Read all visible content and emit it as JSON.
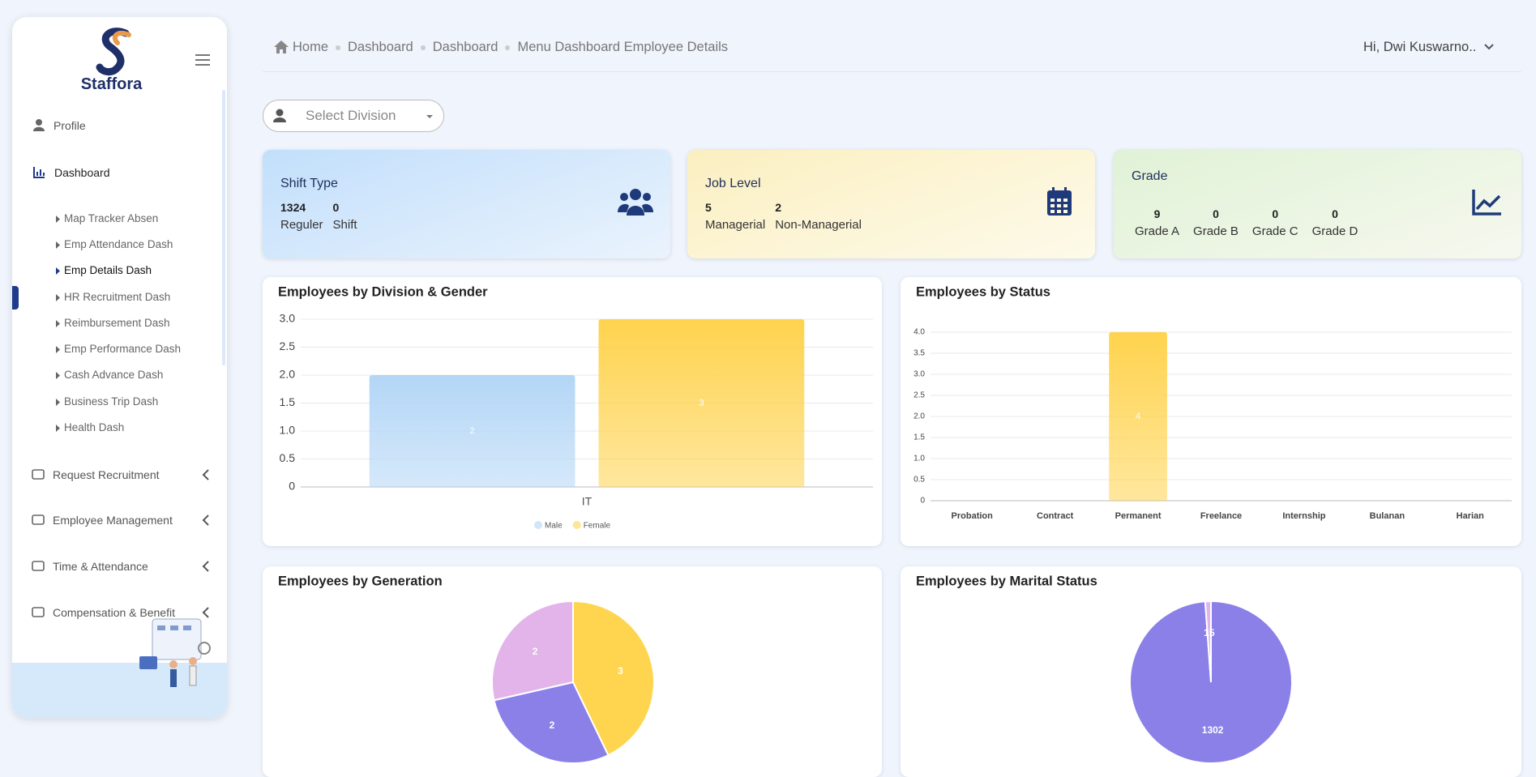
{
  "sidebar": {
    "brand": "Staffora",
    "profile": "Profile",
    "dashboard": "Dashboard",
    "dashboard_items": [
      "Map Tracker Absen",
      "Emp Attendance Dash",
      "Emp Details Dash",
      "HR Recruitment Dash",
      "Reimbursement Dash",
      "Emp Performance Dash",
      "Cash Advance Dash",
      "Business Trip Dash",
      "Health Dash"
    ],
    "groups": [
      "Request Recruitment",
      "Employee Management",
      "Time & Attendance",
      "Compensation & Benefit"
    ]
  },
  "header": {
    "breadcrumb": [
      "Home",
      "Dashboard",
      "Dashboard",
      "Menu Dashboard Employee Details"
    ],
    "user": "Hi, Dwi Kuswarno.."
  },
  "filter": {
    "placeholder": "Select Division"
  },
  "cards": [
    {
      "title": "Shift Type",
      "items": [
        {
          "value": 1324,
          "label": "Reguler"
        },
        {
          "value": 0,
          "label": "Shift"
        }
      ]
    },
    {
      "title": "Job Level",
      "items": [
        {
          "value": 5,
          "label": "Managerial"
        },
        {
          "value": 2,
          "label": "Non-Managerial"
        }
      ]
    },
    {
      "title": "Grade",
      "items": [
        {
          "value": 9,
          "label": "Grade A"
        },
        {
          "value": 0,
          "label": "Grade B"
        },
        {
          "value": 0,
          "label": "Grade C"
        },
        {
          "value": 0,
          "label": "Grade D"
        }
      ]
    }
  ],
  "chart_data": [
    {
      "type": "bar",
      "title": "Employees by Division & Gender",
      "categories": [
        "IT"
      ],
      "series": [
        {
          "name": "Male",
          "color": "#b3d6f6",
          "values": [
            2
          ]
        },
        {
          "name": "Female",
          "color": "#ffd34e",
          "values": [
            3
          ]
        }
      ],
      "ylim": [
        0,
        3
      ],
      "yticks": [
        0,
        0.5,
        {
          "value": 1,
          "label": "1.0"
        },
        1.5,
        {
          "value": 2,
          "label": "2.0"
        },
        2.5,
        {
          "value": 3,
          "label": "3.0"
        }
      ],
      "grid": true,
      "legend": "bottom"
    },
    {
      "type": "bar",
      "title": "Employees by Status",
      "categories": [
        "Probation",
        "Contract",
        "Permanent",
        "Freelance",
        "Internship",
        "Bulanan",
        "Harian"
      ],
      "values": [
        0,
        0,
        4,
        0,
        0,
        0,
        0
      ],
      "color": "#ffd34e",
      "ylim": [
        0,
        4
      ],
      "yticks": [
        0,
        0.5,
        {
          "value": 1,
          "label": "1.0"
        },
        1.5,
        {
          "value": 2,
          "label": "2.0"
        },
        2.5,
        {
          "value": 3,
          "label": "3.0"
        },
        3.5,
        {
          "value": 4,
          "label": "4.0"
        }
      ],
      "grid": true
    },
    {
      "type": "pie",
      "title": "Employees by Generation",
      "values": [
        3,
        2,
        2
      ],
      "colors": [
        "#ffd54f",
        "#8a80e8",
        "#e2b4ea"
      ]
    },
    {
      "type": "pie",
      "title": "Employees by Marital Status",
      "values": [
        1302,
        15
      ],
      "colors": [
        "#8a80e8",
        "#e2b4ea"
      ]
    }
  ]
}
